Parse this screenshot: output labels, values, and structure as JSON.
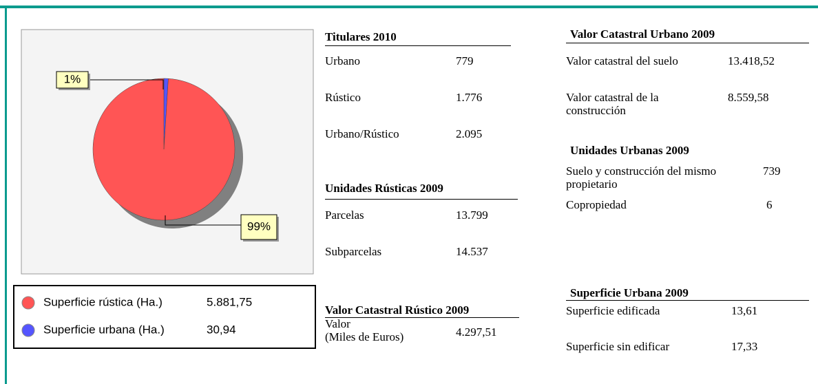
{
  "chart_data": {
    "type": "pie",
    "categories": [
      "Superficie rústica (Ha.)",
      "Superficie urbana (Ha.)"
    ],
    "values": [
      99,
      1
    ],
    "value_labels": [
      "99%",
      "1%"
    ],
    "colors": [
      "#ff5555",
      "#5555ff"
    ],
    "areas": [
      "5.881,75",
      "30,94"
    ]
  },
  "sections": [
    {
      "title": "Titulares 2010",
      "rows": [
        [
          "Urbano",
          "779"
        ],
        [
          "Rústico",
          "1.776"
        ],
        [
          "Urbano/Rústico",
          "2.095"
        ]
      ]
    },
    {
      "title": "Unidades Rústicas 2009",
      "rows": [
        [
          "Parcelas",
          "13.799"
        ],
        [
          "Subparcelas",
          "14.537"
        ]
      ]
    },
    {
      "title": "Valor Catastral Rústico 2009",
      "rows": [
        [
          "Valor\n(Miles de Euros)",
          "4.297,51"
        ]
      ]
    },
    {
      "title": "Valor Catastral Urbano 2009",
      "rows": [
        [
          "Valor catastral del suelo",
          "13.418,52"
        ],
        [
          "Valor catastral de la\nconstrucción",
          "8.559,58"
        ]
      ]
    },
    {
      "title": "Unidades Urbanas 2009",
      "rows": [
        [
          "Suelo y construcción del mismo\npropietario",
          "739"
        ],
        [
          "Copropiedad",
          "6"
        ]
      ]
    },
    {
      "title": "Superficie Urbana 2009",
      "rows": [
        [
          "Superficie edificada",
          "13,61"
        ],
        [
          "Superficie sin edificar",
          "17,33"
        ]
      ]
    }
  ]
}
